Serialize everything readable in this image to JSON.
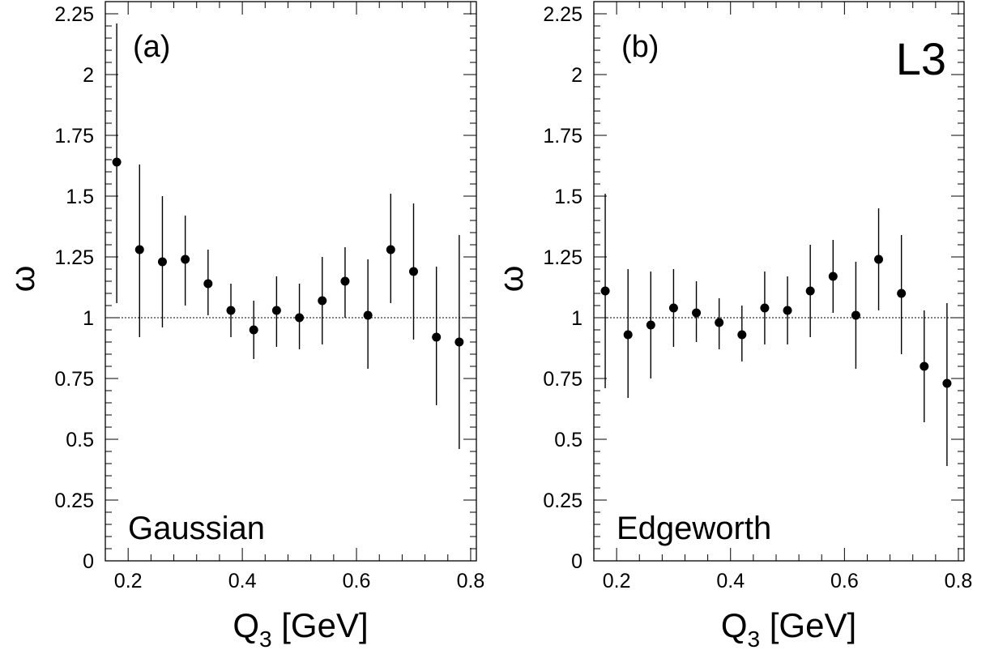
{
  "figure": {
    "experiment_label": "L3"
  },
  "chart_data": [
    {
      "type": "scatter",
      "panel_tag": "(a)",
      "model_label": "Gaussian",
      "xlabel": {
        "main": "Q",
        "sub": "3",
        "rest": " [GeV]"
      },
      "ylabel": "ω",
      "xlim": [
        0.16,
        0.81
      ],
      "ylim": [
        0,
        2.3
      ],
      "xticks": [
        0.2,
        0.4,
        0.6,
        0.8
      ],
      "xtick_labels": [
        "0.2",
        "0.4",
        "0.6",
        "0.8"
      ],
      "yticks": [
        0,
        0.25,
        0.5,
        0.75,
        1,
        1.25,
        1.5,
        1.75,
        2,
        2.25
      ],
      "ytick_labels": [
        "0",
        "0.25",
        "0.5",
        "0.75",
        "1",
        "1.25",
        "1.5",
        "1.75",
        "2",
        "2.25"
      ],
      "reference_line": 1,
      "grid": false,
      "series": [
        {
          "x": [
            0.18,
            0.22,
            0.26,
            0.3,
            0.34,
            0.38,
            0.42,
            0.46,
            0.5,
            0.54,
            0.58,
            0.62,
            0.66,
            0.7,
            0.74,
            0.78
          ],
          "y": [
            1.64,
            1.28,
            1.23,
            1.24,
            1.14,
            1.03,
            0.95,
            1.03,
            1.0,
            1.07,
            1.15,
            1.01,
            1.28,
            1.19,
            0.92,
            0.9
          ],
          "y_low": [
            1.06,
            0.92,
            0.96,
            1.05,
            1.01,
            0.92,
            0.83,
            0.88,
            0.87,
            0.89,
            1.0,
            0.79,
            1.06,
            0.91,
            0.64,
            0.46
          ],
          "y_high": [
            2.21,
            1.63,
            1.5,
            1.42,
            1.28,
            1.14,
            1.07,
            1.17,
            1.14,
            1.25,
            1.29,
            1.24,
            1.51,
            1.47,
            1.21,
            1.34
          ]
        }
      ]
    },
    {
      "type": "scatter",
      "panel_tag": "(b)",
      "model_label": "Edgeworth",
      "xlabel": {
        "main": "Q",
        "sub": "3",
        "rest": " [GeV]"
      },
      "ylabel": "ω",
      "xlim": [
        0.16,
        0.81
      ],
      "ylim": [
        0,
        2.3
      ],
      "xticks": [
        0.2,
        0.4,
        0.6,
        0.8
      ],
      "xtick_labels": [
        "0.2",
        "0.4",
        "0.6",
        "0.8"
      ],
      "yticks": [
        0,
        0.25,
        0.5,
        0.75,
        1,
        1.25,
        1.5,
        1.75,
        2,
        2.25
      ],
      "ytick_labels": [
        "0",
        "0.25",
        "0.5",
        "0.75",
        "1",
        "1.25",
        "1.5",
        "1.75",
        "2",
        "2.25"
      ],
      "reference_line": 1,
      "grid": false,
      "series": [
        {
          "x": [
            0.18,
            0.22,
            0.26,
            0.3,
            0.34,
            0.38,
            0.42,
            0.46,
            0.5,
            0.54,
            0.58,
            0.62,
            0.66,
            0.7,
            0.74,
            0.78
          ],
          "y": [
            1.11,
            0.93,
            0.97,
            1.04,
            1.02,
            0.98,
            0.93,
            1.04,
            1.03,
            1.11,
            1.17,
            1.01,
            1.24,
            1.1,
            0.8,
            0.73
          ],
          "y_low": [
            0.71,
            0.67,
            0.75,
            0.88,
            0.9,
            0.87,
            0.82,
            0.89,
            0.89,
            0.92,
            1.02,
            0.79,
            1.03,
            0.85,
            0.57,
            0.39
          ],
          "y_high": [
            1.51,
            1.2,
            1.19,
            1.2,
            1.15,
            1.08,
            1.05,
            1.19,
            1.17,
            1.3,
            1.32,
            1.23,
            1.45,
            1.34,
            1.03,
            1.06
          ]
        }
      ]
    }
  ]
}
